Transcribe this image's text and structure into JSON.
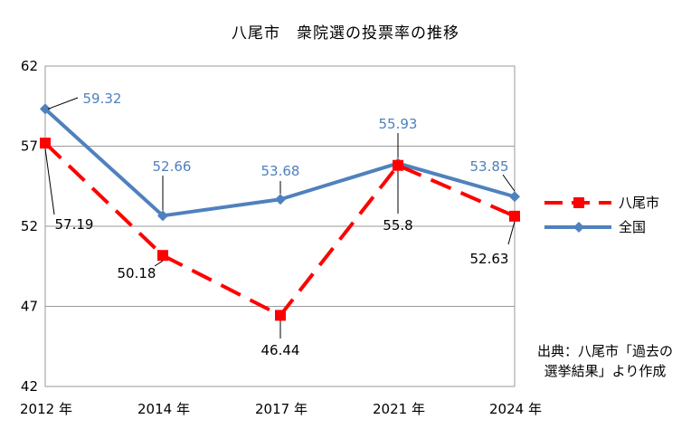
{
  "chart_data": {
    "type": "line",
    "title": "八尾市　衆院選の投票率の推移",
    "categories": [
      "2012 年",
      "2014 年",
      "2017 年",
      "2021 年",
      "2024 年"
    ],
    "ylim": [
      42,
      62
    ],
    "yticks": [
      42,
      47,
      52,
      57,
      62
    ],
    "grid": true,
    "legend_position": "right",
    "series": [
      {
        "name": "八尾市",
        "values": [
          57.19,
          50.18,
          46.44,
          55.8,
          52.63
        ],
        "color": "#ff0000",
        "style": "dashed",
        "marker": "square"
      },
      {
        "name": "全国",
        "values": [
          59.32,
          52.66,
          53.68,
          55.93,
          53.85
        ],
        "color": "#4f81bd",
        "style": "solid",
        "marker": "diamond"
      }
    ],
    "value_labels": {
      "八尾市": [
        "57.19",
        "50.18",
        "46.44",
        "55.8",
        "52.63"
      ],
      "全国": [
        "59.32",
        "52.66",
        "53.68",
        "55.93",
        "53.85"
      ]
    },
    "source": [
      "出典：八尾市「過去の",
      "選挙結果」より作成"
    ]
  }
}
